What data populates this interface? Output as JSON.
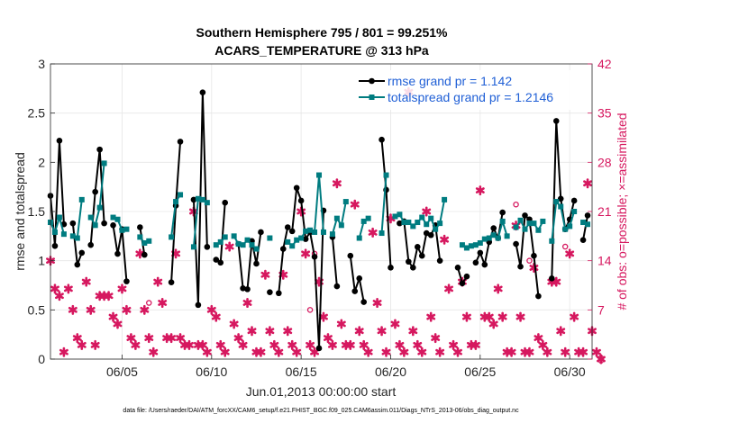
{
  "chart_data": {
    "type": "line",
    "title_line1": "Southern Hemisphere 795 / 801 = 99.251%",
    "title_line2": "ACARS_TEMPERATURE @ 313 hPa",
    "xlabel": "Jun.01,2013 00:00:00 start",
    "ylabel_left": "rmse and totalspread",
    "ylabel_right": "# of obs: o=possible; ×=assimilated",
    "footer": "data file: /Users/raeder/DAI/ATM_forcXX/CAM6_setup/f.e21.FHIST_BGC.f09_025.CAM6assim.011/Diags_NTrS_2013-06/obs_diag_output.nc",
    "xlim": [
      1.0,
      31.25
    ],
    "ylim_left": [
      0,
      3
    ],
    "ylim_right": [
      0,
      42
    ],
    "x_ticks": [
      5,
      10,
      15,
      20,
      25,
      30
    ],
    "x_tick_labels": [
      "06/05",
      "06/10",
      "06/15",
      "06/20",
      "06/25",
      "06/30"
    ],
    "y_left_ticks": [
      0,
      0.5,
      1,
      1.5,
      2,
      2.5,
      3
    ],
    "y_left_tick_labels": [
      "0",
      "0.5",
      "1",
      "1.5",
      "2",
      "2.5",
      "3"
    ],
    "y_right_ticks": [
      0,
      7,
      14,
      21,
      28,
      35,
      42
    ],
    "y_right_tick_labels": [
      "0",
      "7",
      "14",
      "21",
      "28",
      "35",
      "42"
    ],
    "colors": {
      "rmse": "#000000",
      "spread": "#007c80",
      "obs": "#d6185f",
      "legend_text": "#1f5fd6",
      "grid": "#e6e6e6"
    },
    "legend": {
      "placement": "top-right",
      "entries": [
        "rmse grand pr = 1.142",
        "totalspread grand pr = 1.2146"
      ]
    },
    "rmse_segments": [
      [
        [
          1.0,
          1.66
        ],
        [
          1.25,
          1.15
        ],
        [
          1.5,
          2.22
        ],
        [
          1.75,
          1.37
        ]
      ],
      [
        [
          2.25,
          1.38
        ],
        [
          2.5,
          0.96
        ],
        [
          2.75,
          1.08
        ]
      ],
      [
        [
          3.25,
          1.16
        ],
        [
          3.5,
          1.7
        ],
        [
          3.75,
          2.13
        ],
        [
          4.0,
          1.38
        ]
      ],
      [
        [
          4.5,
          1.36
        ],
        [
          4.75,
          1.07
        ],
        [
          5.0,
          1.32
        ],
        [
          5.25,
          0.79
        ]
      ],
      [
        [
          6.0,
          1.34
        ],
        [
          6.25,
          1.06
        ]
      ],
      [
        [
          7.75,
          0.78
        ],
        [
          8.0,
          1.56
        ],
        [
          8.25,
          2.21
        ]
      ],
      [
        [
          9.0,
          1.62
        ],
        [
          9.25,
          0.55
        ],
        [
          9.5,
          2.71
        ],
        [
          9.75,
          1.14
        ]
      ],
      [
        [
          10.25,
          1.01
        ],
        [
          10.5,
          0.98
        ],
        [
          10.75,
          1.59
        ]
      ],
      [
        [
          11.5,
          1.17
        ],
        [
          11.75,
          0.72
        ],
        [
          12.0,
          0.71
        ],
        [
          12.25,
          1.2
        ],
        [
          12.5,
          0.97
        ],
        [
          12.75,
          1.29
        ]
      ],
      [
        [
          13.25,
          0.68
        ]
      ],
      [
        [
          13.75,
          0.67
        ],
        [
          14.0,
          1.12
        ],
        [
          14.25,
          1.34
        ]
      ],
      [
        [
          14.5,
          1.3
        ],
        [
          14.75,
          1.74
        ],
        [
          15.0,
          1.61
        ],
        [
          15.25,
          1.22
        ],
        [
          15.5,
          1.29
        ],
        [
          15.75,
          1.04
        ],
        [
          16.0,
          0.11
        ],
        [
          16.25,
          1.51
        ]
      ],
      [
        [
          16.75,
          1.24
        ],
        [
          17.0,
          0.74
        ]
      ],
      [
        [
          17.75,
          1.05
        ],
        [
          18.0,
          0.69
        ],
        [
          18.25,
          0.82
        ],
        [
          18.5,
          0.58
        ]
      ],
      [
        [
          19.5,
          2.23
        ],
        [
          19.75,
          1.72
        ],
        [
          20.0,
          0.93
        ]
      ],
      [
        [
          20.5,
          1.38
        ],
        [
          20.75,
          1.4
        ],
        [
          21.0,
          0.99
        ],
        [
          21.25,
          0.93
        ],
        [
          21.5,
          1.14
        ],
        [
          21.75,
          1.05
        ],
        [
          22.0,
          1.28
        ],
        [
          22.25,
          1.26
        ],
        [
          22.5,
          1.36
        ],
        [
          22.75,
          1.0
        ]
      ],
      [
        [
          23.75,
          0.93
        ],
        [
          24.0,
          0.77
        ],
        [
          24.25,
          0.84
        ]
      ],
      [
        [
          24.75,
          0.98
        ],
        [
          25.0,
          1.08
        ],
        [
          25.25,
          0.96
        ],
        [
          25.5,
          1.19
        ],
        [
          25.75,
          1.33
        ],
        [
          26.0,
          1.23
        ],
        [
          26.25,
          1.49
        ]
      ],
      [
        [
          27.0,
          1.17
        ],
        [
          27.25,
          0.94
        ],
        [
          27.5,
          1.46
        ],
        [
          27.75,
          1.42
        ],
        [
          28.0,
          1.05
        ],
        [
          28.25,
          0.64
        ]
      ],
      [
        [
          29.0,
          0.82
        ],
        [
          29.25,
          2.42
        ],
        [
          29.5,
          1.63
        ],
        [
          29.75,
          1.32
        ],
        [
          30.0,
          1.42
        ],
        [
          30.25,
          1.61
        ]
      ],
      [
        [
          30.75,
          1.21
        ],
        [
          31.0,
          1.46
        ]
      ]
    ],
    "spread_segments": [
      [
        [
          1.0,
          1.39
        ],
        [
          1.25,
          1.29
        ],
        [
          1.5,
          1.44
        ],
        [
          1.75,
          1.27
        ]
      ],
      [
        [
          2.25,
          1.25
        ],
        [
          2.5,
          1.23
        ],
        [
          2.75,
          1.62
        ]
      ],
      [
        [
          3.25,
          1.44
        ],
        [
          3.5,
          1.36
        ],
        [
          3.75,
          1.54
        ],
        [
          4.0,
          1.99
        ]
      ],
      [
        [
          4.5,
          1.44
        ],
        [
          4.75,
          1.42
        ],
        [
          5.0,
          1.31
        ],
        [
          5.25,
          1.32
        ]
      ],
      [
        [
          6.0,
          1.24
        ],
        [
          6.25,
          1.18
        ],
        [
          6.5,
          1.2
        ]
      ],
      [
        [
          7.75,
          1.24
        ],
        [
          8.0,
          1.6
        ],
        [
          8.25,
          1.67
        ]
      ],
      [
        [
          9.0,
          1.14
        ],
        [
          9.25,
          1.63
        ],
        [
          9.5,
          1.62
        ],
        [
          9.75,
          1.59
        ]
      ],
      [
        [
          10.25,
          1.16
        ],
        [
          10.5,
          1.19
        ],
        [
          10.75,
          1.24
        ]
      ],
      [
        [
          11.25,
          1.25
        ],
        [
          11.5,
          1.17
        ],
        [
          11.75,
          1.16
        ],
        [
          12.0,
          1.21
        ],
        [
          12.25,
          1.16
        ],
        [
          12.5,
          1.12
        ]
      ],
      [
        [
          13.25,
          1.23
        ]
      ],
      [
        [
          14.25,
          1.19
        ],
        [
          14.5,
          1.15
        ],
        [
          14.75,
          1.21
        ],
        [
          15.0,
          1.23
        ],
        [
          15.25,
          1.3
        ],
        [
          15.5,
          1.31
        ],
        [
          15.75,
          1.29
        ],
        [
          16.0,
          1.87
        ],
        [
          16.25,
          1.29
        ]
      ],
      [
        [
          16.75,
          1.27
        ],
        [
          17.0,
          1.43
        ],
        [
          17.25,
          1.36
        ],
        [
          17.5,
          1.6
        ]
      ],
      [
        [
          18.25,
          1.23
        ],
        [
          18.5,
          1.4
        ],
        [
          18.75,
          1.43
        ]
      ],
      [
        [
          19.5,
          1.28
        ],
        [
          19.75,
          1.87
        ]
      ],
      [
        [
          20.25,
          1.45
        ],
        [
          20.5,
          1.47
        ],
        [
          20.75,
          1.39
        ],
        [
          21.0,
          1.39
        ],
        [
          21.25,
          1.35
        ],
        [
          21.5,
          1.39
        ],
        [
          21.75,
          1.44
        ],
        [
          22.0,
          1.37
        ],
        [
          22.25,
          1.43
        ],
        [
          22.5,
          1.32
        ],
        [
          22.75,
          1.38
        ],
        [
          23.0,
          1.62
        ]
      ],
      [
        [
          24.0,
          1.16
        ],
        [
          24.25,
          1.13
        ]
      ],
      [
        [
          24.5,
          1.15
        ],
        [
          24.75,
          1.16
        ],
        [
          25.0,
          1.18
        ],
        [
          25.25,
          1.22
        ],
        [
          25.5,
          1.23
        ],
        [
          25.75,
          1.26
        ],
        [
          26.0,
          1.23
        ],
        [
          26.25,
          1.4
        ],
        [
          26.5,
          1.25
        ]
      ],
      [
        [
          27.0,
          1.34
        ],
        [
          27.25,
          1.41
        ],
        [
          27.5,
          1.32
        ],
        [
          27.75,
          1.38
        ],
        [
          28.0,
          1.38
        ],
        [
          28.25,
          1.31
        ],
        [
          28.5,
          1.4
        ]
      ],
      [
        [
          29.0,
          1.2
        ],
        [
          29.25,
          1.6
        ],
        [
          29.5,
          1.55
        ],
        [
          29.75,
          1.32
        ],
        [
          30.0,
          1.35
        ],
        [
          30.25,
          1.5
        ]
      ],
      [
        [
          30.75,
          1.39
        ],
        [
          31.0,
          1.37
        ]
      ]
    ],
    "obs_assimilated": [
      [
        1.0,
        14
      ],
      [
        1.25,
        10
      ],
      [
        1.5,
        9
      ],
      [
        1.75,
        1
      ],
      [
        2.0,
        10
      ],
      [
        2.25,
        7
      ],
      [
        2.5,
        3
      ],
      [
        2.75,
        2
      ],
      [
        3.0,
        11
      ],
      [
        3.25,
        7
      ],
      [
        3.5,
        2
      ],
      [
        3.75,
        9
      ],
      [
        4.0,
        9
      ],
      [
        4.25,
        9
      ],
      [
        4.5,
        6
      ],
      [
        4.75,
        5
      ],
      [
        5.0,
        10
      ],
      [
        5.25,
        7
      ],
      [
        5.5,
        3
      ],
      [
        5.75,
        2
      ],
      [
        6.0,
        15
      ],
      [
        6.25,
        7
      ],
      [
        6.5,
        3
      ],
      [
        6.75,
        1
      ],
      [
        7.0,
        11
      ],
      [
        7.25,
        8
      ],
      [
        7.5,
        3
      ],
      [
        7.75,
        3
      ],
      [
        8.0,
        15
      ],
      [
        8.25,
        3
      ],
      [
        8.5,
        2
      ],
      [
        8.75,
        2
      ],
      [
        9.0,
        21
      ],
      [
        9.25,
        2
      ],
      [
        9.5,
        2
      ],
      [
        9.75,
        1
      ],
      [
        10.0,
        7
      ],
      [
        10.25,
        6
      ],
      [
        10.5,
        2
      ],
      [
        10.75,
        1
      ],
      [
        11.0,
        16
      ],
      [
        11.25,
        5
      ],
      [
        11.5,
        3
      ],
      [
        11.75,
        2
      ],
      [
        12.0,
        8
      ],
      [
        12.25,
        4
      ],
      [
        12.5,
        1
      ],
      [
        12.75,
        1
      ],
      [
        13.0,
        12
      ],
      [
        13.25,
        4
      ],
      [
        13.5,
        2
      ],
      [
        13.75,
        1
      ],
      [
        14.0,
        12
      ],
      [
        14.25,
        4
      ],
      [
        14.5,
        2
      ],
      [
        14.75,
        1
      ],
      [
        15.0,
        21
      ],
      [
        15.25,
        15
      ],
      [
        15.5,
        2
      ],
      [
        15.75,
        1
      ],
      [
        16.0,
        11
      ],
      [
        16.25,
        6
      ],
      [
        16.5,
        3
      ],
      [
        16.75,
        2
      ],
      [
        17.0,
        25
      ],
      [
        17.25,
        5
      ],
      [
        17.5,
        2
      ],
      [
        17.75,
        2
      ],
      [
        18.0,
        22
      ],
      [
        18.25,
        4
      ],
      [
        18.5,
        2
      ],
      [
        18.75,
        1
      ],
      [
        19.0,
        18
      ],
      [
        19.25,
        8
      ],
      [
        19.5,
        4
      ],
      [
        19.75,
        1
      ],
      [
        20.0,
        20
      ],
      [
        20.25,
        5
      ],
      [
        20.5,
        2
      ],
      [
        20.75,
        1
      ],
      [
        21.0,
        38
      ],
      [
        21.25,
        4
      ],
      [
        21.5,
        2
      ],
      [
        21.75,
        1
      ],
      [
        22.0,
        21
      ],
      [
        22.25,
        6
      ],
      [
        22.5,
        3
      ],
      [
        22.75,
        1
      ],
      [
        23.0,
        17
      ],
      [
        23.25,
        10
      ],
      [
        23.5,
        2
      ],
      [
        23.75,
        1
      ],
      [
        24.0,
        11
      ],
      [
        24.25,
        6
      ],
      [
        24.5,
        2
      ],
      [
        24.75,
        2
      ],
      [
        25.0,
        24
      ],
      [
        25.25,
        6
      ],
      [
        25.5,
        6
      ],
      [
        25.75,
        5
      ],
      [
        26.0,
        10
      ],
      [
        26.25,
        6
      ],
      [
        26.5,
        1
      ],
      [
        26.75,
        1
      ],
      [
        27.0,
        19
      ],
      [
        27.25,
        6
      ],
      [
        27.5,
        1
      ],
      [
        27.75,
        1
      ],
      [
        28.0,
        13
      ],
      [
        28.25,
        3
      ],
      [
        28.5,
        2
      ],
      [
        28.75,
        1
      ],
      [
        29.0,
        11
      ],
      [
        29.25,
        11
      ],
      [
        29.5,
        4
      ],
      [
        29.75,
        1
      ],
      [
        30.0,
        15
      ],
      [
        30.25,
        6
      ],
      [
        30.5,
        1
      ],
      [
        30.75,
        1
      ],
      [
        31.0,
        25
      ],
      [
        31.25,
        4
      ],
      [
        31.5,
        1
      ],
      [
        31.75,
        0
      ]
    ],
    "obs_possible": [
      [
        6.5,
        8
      ],
      [
        15.5,
        7
      ],
      [
        15.75,
        15
      ],
      [
        27.0,
        22
      ],
      [
        27.75,
        14
      ],
      [
        29.75,
        16
      ]
    ]
  }
}
